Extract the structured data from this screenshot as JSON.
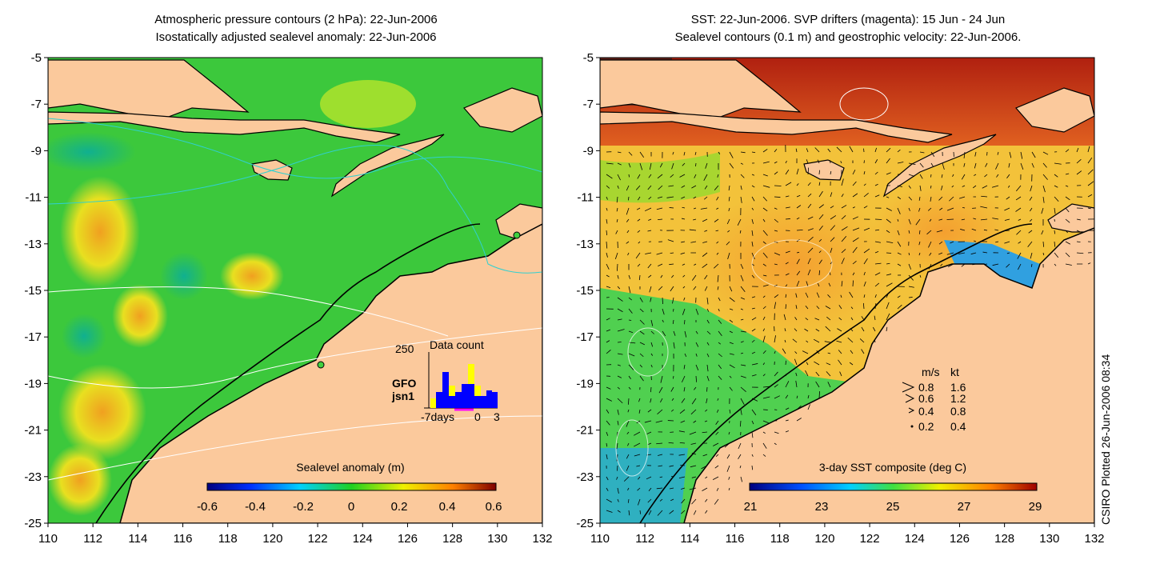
{
  "left_panel": {
    "title_line1": "Atmospheric pressure contours (2 hPa): 22-Jun-2006",
    "title_line2": "Isostatically adjusted sealevel anomaly: 22-Jun-2006",
    "colorbar_label": "Sealevel anomaly (m)",
    "colorbar_ticks": [
      "-0.6",
      "-0.4",
      "-0.2",
      "0",
      "0.2",
      "0.4",
      "0.6"
    ],
    "inset": {
      "y_max": "250",
      "title": "Data count",
      "legend": [
        "GFO",
        "jsn1"
      ],
      "x_labels": [
        "-7days",
        "0",
        "3"
      ],
      "colors": {
        "GFO": "#ffff00",
        "jsn1": "#0000ff"
      }
    }
  },
  "right_panel": {
    "title_line1": "SST: 22-Jun-2006. SVP drifters (magenta): 15 Jun - 24 Jun",
    "title_line2": "Sealevel contours (0.1 m) and geostrophic velocity: 22-Jun-2006.",
    "colorbar_label": "3-day SST composite (deg C)",
    "colorbar_ticks": [
      "21",
      "23",
      "25",
      "27",
      "29"
    ],
    "velocity_key": {
      "headers": [
        "m/s",
        "kt"
      ],
      "rows": [
        [
          "0.8",
          "1.6"
        ],
        [
          "0.6",
          "1.2"
        ],
        [
          "0.4",
          "0.8"
        ],
        [
          "0.2",
          "0.4"
        ]
      ]
    }
  },
  "axes": {
    "lat_ticks": [
      "-5",
      "-7",
      "-9",
      "-11",
      "-13",
      "-15",
      "-17",
      "-19",
      "-21",
      "-23",
      "-25"
    ],
    "lon_ticks": [
      "110",
      "112",
      "114",
      "116",
      "118",
      "120",
      "122",
      "124",
      "126",
      "128",
      "130",
      "132"
    ]
  },
  "credit": "CSIRO Plotted 26-Jun-2006 08:34",
  "colors": {
    "land": "#fbc99c",
    "ocean_left": "#3cc83c",
    "ocean_right": "#f3c23a"
  }
}
